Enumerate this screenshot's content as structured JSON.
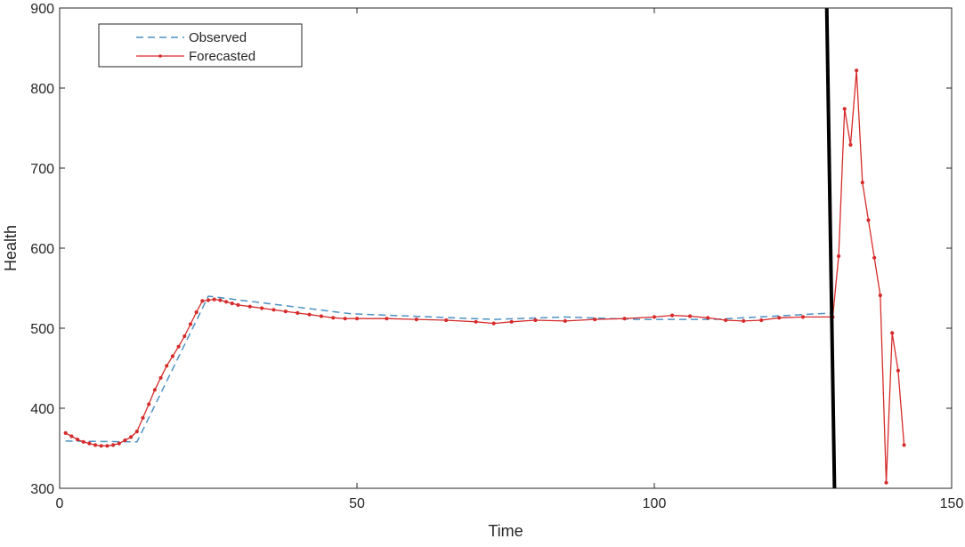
{
  "chart_data": {
    "type": "line",
    "title": "",
    "xlabel": "Time",
    "ylabel": "Health",
    "xlim": [
      0,
      150
    ],
    "ylim": [
      300,
      900
    ],
    "xticks": [
      0,
      50,
      100,
      150
    ],
    "yticks": [
      300,
      400,
      500,
      600,
      700,
      800,
      900
    ],
    "grid": false,
    "legend_position": "top-left",
    "series": [
      {
        "name": "Observed",
        "style": "dashed",
        "color": "#4c92c3",
        "x": [
          1,
          13,
          14,
          25,
          49,
          73,
          85,
          97,
          110,
          130
        ],
        "y": [
          359,
          358,
          373,
          540,
          518,
          511,
          514,
          511,
          511,
          519
        ]
      },
      {
        "name": "Forecasted",
        "style": "solid-markers",
        "color": "#d62b2b",
        "x": [
          1,
          2,
          3,
          4,
          5,
          6,
          7,
          8,
          9,
          10,
          11,
          12,
          13,
          14,
          15,
          16,
          17,
          18,
          19,
          20,
          21,
          22,
          23,
          24,
          25,
          26,
          27,
          28,
          29,
          30,
          32,
          34,
          36,
          38,
          40,
          42,
          44,
          46,
          48,
          50,
          55,
          60,
          65,
          70,
          73,
          76,
          80,
          85,
          90,
          95,
          100,
          103,
          106,
          109,
          112,
          115,
          118,
          121,
          125,
          130,
          131,
          132,
          133,
          134,
          135,
          136,
          137,
          138,
          139,
          140,
          141,
          142
        ],
        "y": [
          369,
          365,
          361,
          358,
          356,
          354,
          353,
          353,
          354,
          356,
          360,
          364,
          371,
          388,
          405,
          423,
          438,
          453,
          465,
          477,
          490,
          505,
          520,
          534,
          535,
          536,
          535,
          533,
          531,
          529,
          527,
          525,
          523,
          521,
          519,
          517,
          515,
          513,
          512,
          512,
          512,
          511,
          510,
          508,
          506,
          508,
          510,
          509,
          511,
          512,
          514,
          516,
          515,
          513,
          510,
          509,
          510,
          513,
          514,
          514,
          590,
          774,
          729,
          822,
          682,
          635,
          588,
          541,
          307,
          494,
          447,
          354
        ]
      },
      {
        "name": "",
        "style": "solid-thick",
        "color": "#000000",
        "x": [
          129,
          130.3
        ],
        "y": [
          900,
          300
        ]
      }
    ]
  }
}
